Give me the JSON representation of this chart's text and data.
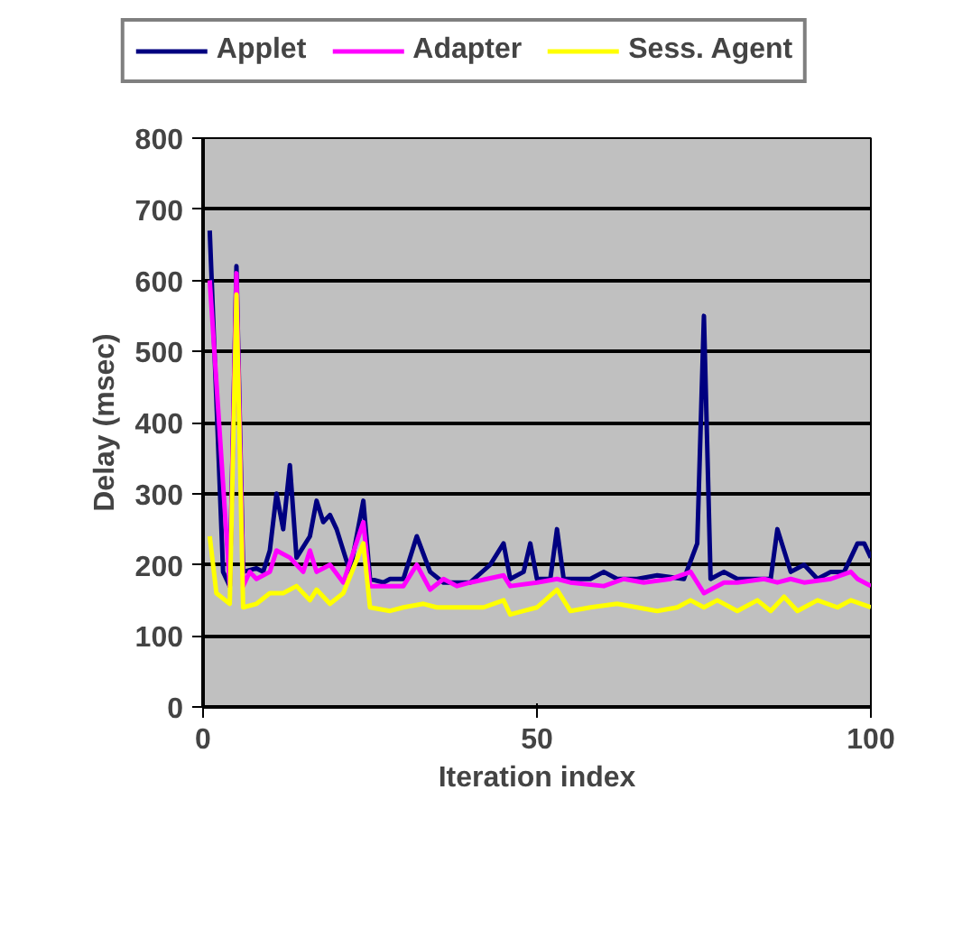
{
  "chart_data": {
    "type": "line",
    "xlabel": "Iteration index",
    "ylabel": "Delay (msec)",
    "xlim": [
      0,
      100
    ],
    "xticks": [
      0,
      50,
      100
    ],
    "ylim": [
      0,
      800
    ],
    "yticks": [
      0,
      100,
      200,
      300,
      400,
      500,
      600,
      700,
      800
    ],
    "grid": "y",
    "legend": "top",
    "marker": "none",
    "line_style": "solid",
    "series": [
      {
        "name": "Applet",
        "color": "#000080",
        "x": [
          1,
          3,
          4,
          5,
          6,
          8,
          9,
          10,
          11,
          12,
          13,
          14,
          16,
          17,
          18,
          19,
          20,
          22,
          24,
          25,
          27,
          28,
          30,
          32,
          34,
          36,
          40,
          43,
          45,
          46,
          48,
          49,
          50,
          52,
          53,
          54,
          58,
          60,
          62,
          65,
          68,
          72,
          74,
          75,
          76,
          78,
          80,
          84,
          85,
          86,
          88,
          90,
          92,
          94,
          96,
          98,
          99,
          100
        ],
        "values": [
          670,
          190,
          170,
          620,
          190,
          195,
          190,
          220,
          300,
          250,
          340,
          210,
          240,
          290,
          260,
          270,
          250,
          190,
          290,
          180,
          175,
          180,
          180,
          240,
          190,
          175,
          175,
          200,
          230,
          180,
          190,
          230,
          180,
          180,
          250,
          180,
          180,
          190,
          180,
          180,
          185,
          180,
          230,
          550,
          180,
          190,
          180,
          180,
          180,
          250,
          190,
          200,
          180,
          190,
          190,
          230,
          230,
          210
        ]
      },
      {
        "name": "Adapter",
        "color": "#ff00ff",
        "x": [
          1,
          4,
          5,
          6,
          7,
          8,
          10,
          11,
          13,
          14,
          15,
          16,
          17,
          19,
          21,
          24,
          25,
          30,
          32,
          34,
          36,
          38,
          40,
          45,
          46,
          50,
          53,
          55,
          60,
          63,
          66,
          70,
          73,
          75,
          78,
          80,
          84,
          86,
          88,
          90,
          94,
          97,
          98,
          100
        ],
        "values": [
          600,
          170,
          610,
          170,
          190,
          180,
          190,
          220,
          210,
          200,
          190,
          220,
          190,
          200,
          175,
          260,
          170,
          170,
          200,
          165,
          180,
          170,
          175,
          185,
          170,
          175,
          180,
          175,
          170,
          180,
          175,
          180,
          190,
          160,
          175,
          175,
          180,
          175,
          180,
          175,
          180,
          190,
          180,
          170
        ]
      },
      {
        "name": "Sess. Agent",
        "color": "#ffff00",
        "x": [
          1,
          2,
          4,
          5,
          6,
          8,
          10,
          12,
          14,
          16,
          17,
          19,
          21,
          24,
          25,
          28,
          30,
          33,
          35,
          40,
          42,
          45,
          46,
          48,
          50,
          53,
          55,
          58,
          62,
          65,
          68,
          71,
          73,
          75,
          77,
          80,
          83,
          85,
          87,
          89,
          92,
          95,
          97,
          100
        ],
        "values": [
          240,
          160,
          145,
          580,
          140,
          145,
          160,
          160,
          170,
          150,
          165,
          145,
          160,
          230,
          140,
          135,
          140,
          145,
          140,
          140,
          140,
          150,
          130,
          135,
          140,
          165,
          135,
          140,
          145,
          140,
          135,
          140,
          150,
          140,
          150,
          135,
          150,
          135,
          155,
          135,
          150,
          140,
          150,
          140
        ]
      }
    ]
  }
}
